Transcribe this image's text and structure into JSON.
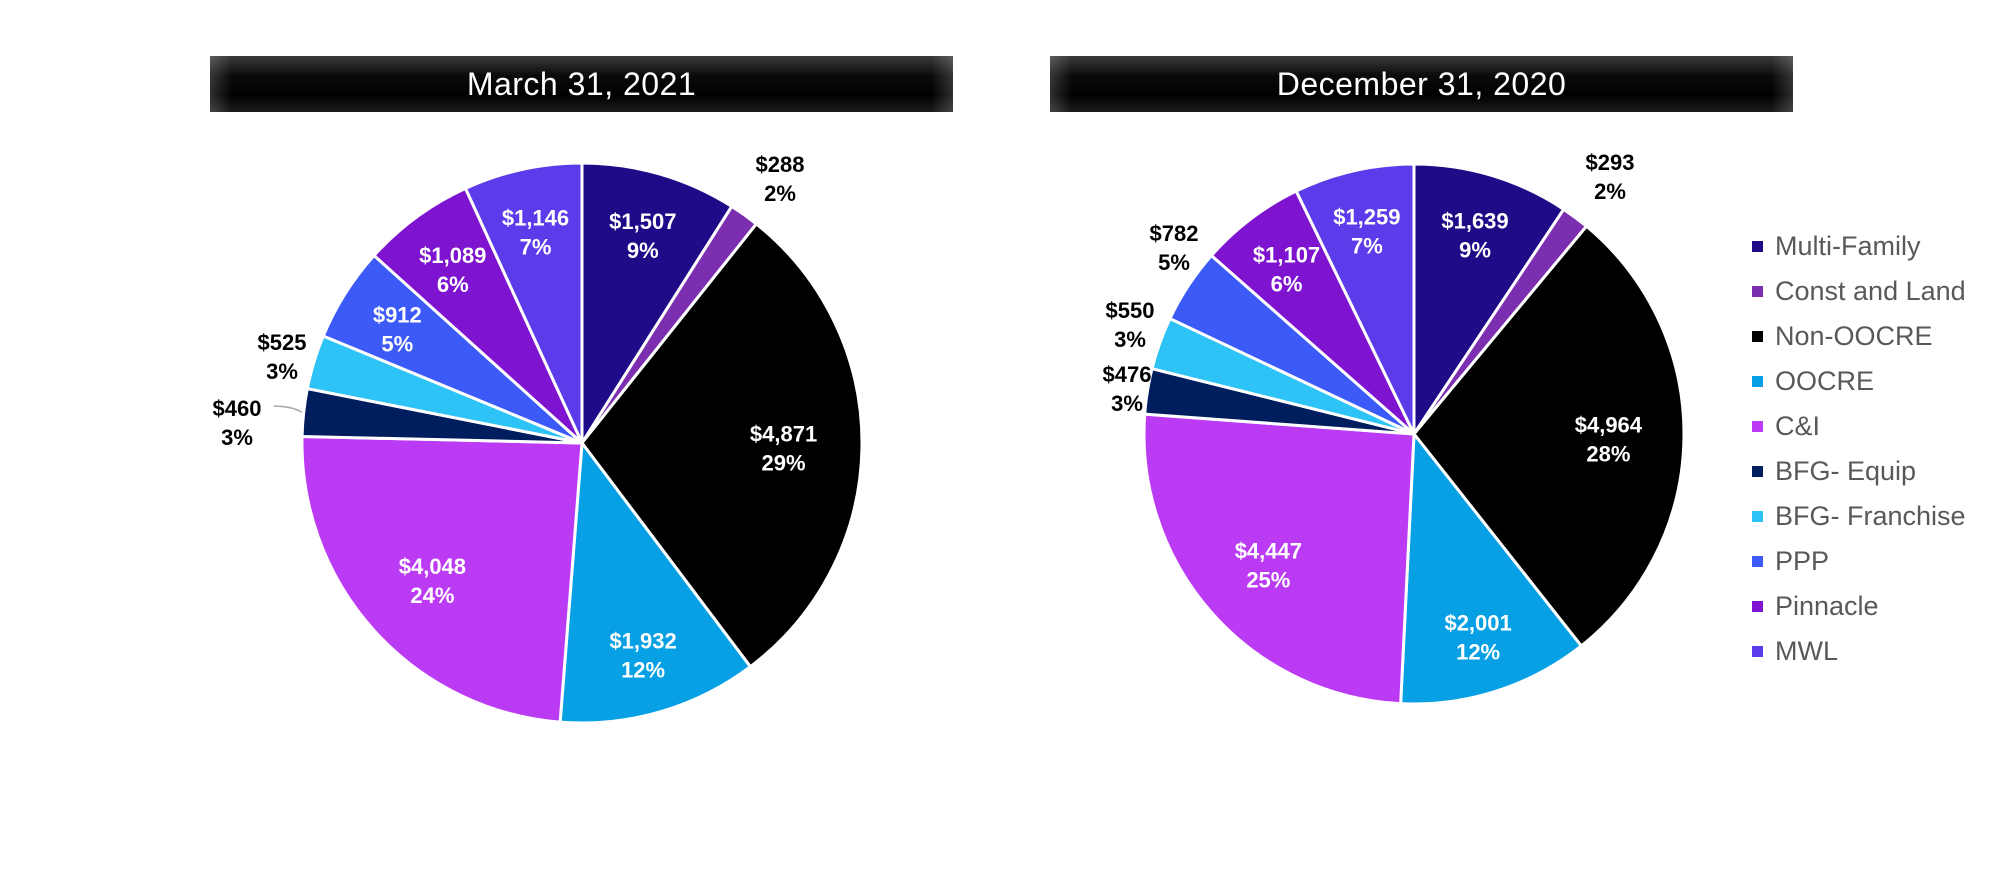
{
  "chart_data": [
    {
      "type": "pie",
      "title": "March 31, 2021",
      "categories": [
        "Multi-Family",
        "Const and Land",
        "Non-OOCRE",
        "OOCRE",
        "C&I",
        "BFG- Equip",
        "BFG- Franchise",
        "PPP",
        "Pinnacle",
        "MWL"
      ],
      "values": [
        1507,
        288,
        4871,
        1932,
        4048,
        460,
        525,
        912,
        1089,
        1146
      ],
      "value_labels": [
        "$1,507",
        "$288",
        "$4,871",
        "$1,932",
        "$4,048",
        "$460",
        "$525",
        "$912",
        "$1,089",
        "$1,146"
      ],
      "percent_labels": [
        "9%",
        "2%",
        "29%",
        "12%",
        "24%",
        "3%",
        "3%",
        "5%",
        "6%",
        "7%"
      ]
    },
    {
      "type": "pie",
      "title": "December 31, 2020",
      "categories": [
        "Multi-Family",
        "Const and Land",
        "Non-OOCRE",
        "OOCRE",
        "C&I",
        "BFG- Equip",
        "BFG- Franchise",
        "PPP",
        "Pinnacle",
        "MWL"
      ],
      "values": [
        1639,
        293,
        4964,
        2001,
        4447,
        476,
        550,
        782,
        1107,
        1259
      ],
      "value_labels": [
        "$1,639",
        "$293",
        "$4,964",
        "$2,001",
        "$4,447",
        "$476",
        "$550",
        "$782",
        "$1,107",
        "$1,259"
      ],
      "percent_labels": [
        "9%",
        "2%",
        "28%",
        "12%",
        "25%",
        "3%",
        "3%",
        "5%",
        "6%",
        "7%"
      ]
    }
  ],
  "legend": {
    "placement": "right",
    "items": [
      {
        "label": "Multi-Family",
        "color": "#1F0A87"
      },
      {
        "label": "Const and Land",
        "color": "#7B2FB0"
      },
      {
        "label": "Non-OOCRE",
        "color": "#000000"
      },
      {
        "label": "OOCRE",
        "color": "#08A0E4"
      },
      {
        "label": "C&I",
        "color": "#BB3BF4"
      },
      {
        "label": "BFG- Equip",
        "color": "#001E5E"
      },
      {
        "label": "BFG- Franchise",
        "color": "#2DC3F6"
      },
      {
        "label": "PPP",
        "color": "#3C5AF7"
      },
      {
        "label": "Pinnacle",
        "color": "#7E14CF"
      },
      {
        "label": "MWL",
        "color": "#5B3BEA"
      }
    ]
  }
}
